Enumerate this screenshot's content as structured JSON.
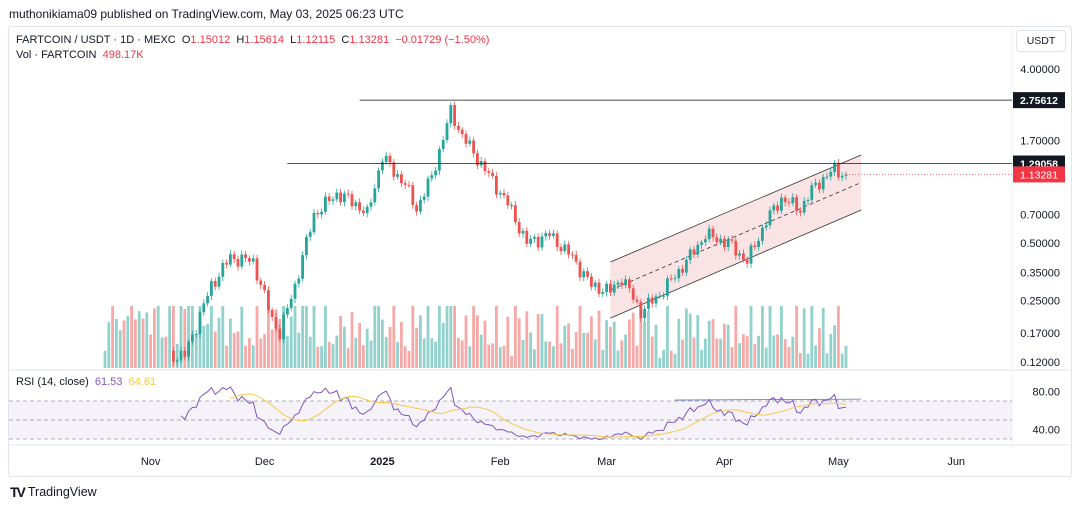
{
  "header": {
    "published": "muthonikiama09 published on TradingView.com, May 03, 2025 06:23 UTC"
  },
  "legend": {
    "symbol": "FARTCOIN / USDT · 1D · MEXC",
    "o_label": "O",
    "o": "1.15012",
    "h_label": "H",
    "h": "1.15614",
    "l_label": "L",
    "l": "1.12115",
    "c_label": "C",
    "c": "1.13281",
    "change": "−0.01729 (−1.50%)",
    "vol_label": "Vol · FARTCOIN",
    "vol": "498.17K"
  },
  "rsi": {
    "label": "RSI (14, close)",
    "value": "61.53",
    "ma_value": "64.61",
    "ticks": [
      "80.00",
      "40.00"
    ]
  },
  "currency": "USDT",
  "brand": "TradingView",
  "colors": {
    "up": "#26a69a",
    "down": "#ef5350",
    "rsi": "#7e57c2",
    "rsi_ma": "#f7c948",
    "channel": "#f8d7da"
  },
  "chart_data": {
    "type": "candlestick",
    "title": "FARTCOIN / USDT 1D",
    "y_scale": "log",
    "ylim": [
      0.115,
      4.3
    ],
    "y_ticks": [
      "4.00000",
      "1.70000",
      "0.70000",
      "0.50000",
      "0.35000",
      "0.25000",
      "0.17000",
      "0.12000"
    ],
    "x_ticks": [
      "Nov",
      "Dec",
      "2025",
      "Feb",
      "Mar",
      "Apr",
      "May",
      "Jun"
    ],
    "x_tick_days": [
      12,
      42,
      73,
      104,
      132,
      163,
      193,
      224
    ],
    "start_date": "2024-10-20",
    "close_anchors": [
      [
        0,
        0.12
      ],
      [
        21,
        0.13
      ],
      [
        28,
        0.3
      ],
      [
        33,
        0.42
      ],
      [
        39,
        0.4
      ],
      [
        44,
        0.2
      ],
      [
        46,
        0.17
      ],
      [
        50,
        0.3
      ],
      [
        55,
        0.7
      ],
      [
        61,
        0.9
      ],
      [
        66,
        0.8
      ],
      [
        69,
        0.7
      ],
      [
        73,
        1.4
      ],
      [
        79,
        1.0
      ],
      [
        82,
        0.75
      ],
      [
        86,
        1.1
      ],
      [
        91,
        2.4
      ],
      [
        94,
        1.8
      ],
      [
        100,
        1.2
      ],
      [
        106,
        0.8
      ],
      [
        111,
        0.5
      ],
      [
        117,
        0.55
      ],
      [
        123,
        0.42
      ],
      [
        128,
        0.3
      ],
      [
        133,
        0.28
      ],
      [
        136,
        0.33
      ],
      [
        141,
        0.22
      ],
      [
        146,
        0.27
      ],
      [
        153,
        0.4
      ],
      [
        158,
        0.55
      ],
      [
        164,
        0.5
      ],
      [
        169,
        0.4
      ],
      [
        174,
        0.65
      ],
      [
        178,
        0.85
      ],
      [
        183,
        0.75
      ],
      [
        187,
        1.0
      ],
      [
        192,
        1.2
      ],
      [
        195,
        1.13
      ]
    ],
    "horizontal_levels": [
      {
        "price": 2.75612,
        "label": "2.75612",
        "from_day": 67
      },
      {
        "price": 1.29058,
        "label": "1.29058",
        "from_day": 48
      }
    ],
    "last_price": {
      "price": 1.13281,
      "label": "1.13281"
    },
    "channel": {
      "from_day": 133,
      "to_day": 199,
      "lower": [
        0.203,
        0.74
      ],
      "upper": [
        0.397,
        1.43
      ]
    }
  }
}
